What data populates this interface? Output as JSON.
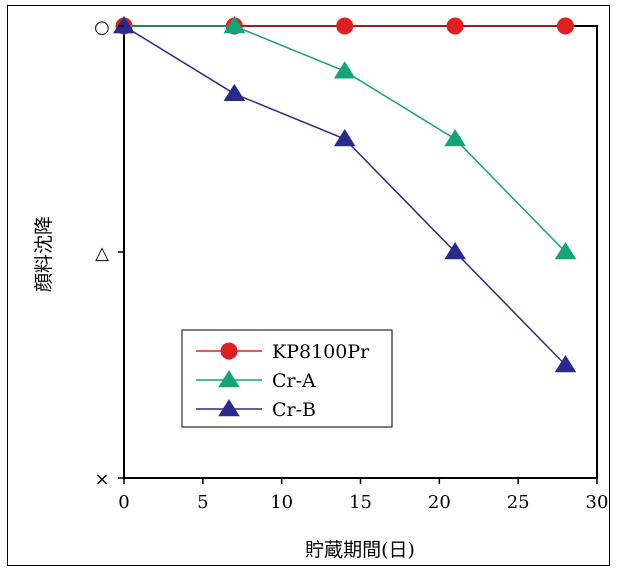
{
  "chart_data": {
    "type": "line",
    "title": "",
    "xlabel": "貯蔵期間(日)",
    "ylabel": "顔料沈降",
    "xlim": [
      0,
      30
    ],
    "xticks": [
      0,
      5,
      10,
      15,
      20,
      25,
      30
    ],
    "ylim": [
      0,
      2
    ],
    "yticks": [
      {
        "value": 2,
        "label": "○"
      },
      {
        "value": 1,
        "label": "△"
      },
      {
        "value": 0,
        "label": "×"
      }
    ],
    "grid": false,
    "legend_position": "bottom-left",
    "series": [
      {
        "name": "KP8100Pr",
        "marker": "circle",
        "color": "#e02020",
        "markerColor": "#e02020",
        "x": [
          0,
          7,
          14,
          21,
          28
        ],
        "y": [
          2,
          2,
          2,
          2,
          2
        ]
      },
      {
        "name": "Cr-A",
        "marker": "triangle",
        "color": "#15a37a",
        "markerColor": "#15a37a",
        "x": [
          0,
          7,
          14,
          21,
          28
        ],
        "y": [
          2,
          2,
          1.8,
          1.5,
          1
        ]
      },
      {
        "name": "Cr-B",
        "marker": "triangle",
        "color": "#2a2a8c",
        "markerColor": "#2a2a8c",
        "x": [
          0,
          7,
          14,
          21,
          28
        ],
        "y": [
          2,
          1.7,
          1.5,
          1,
          0.5
        ]
      }
    ]
  }
}
